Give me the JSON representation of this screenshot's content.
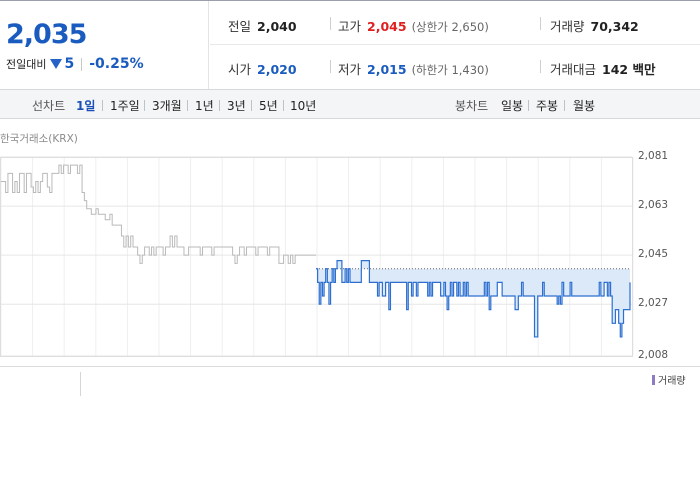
{
  "price": {
    "current": "2,035",
    "change_label": "전일대비",
    "change_value": "5",
    "change_rate": "-0.25%"
  },
  "stats": {
    "prev_close_label": "전일",
    "prev_close": "2,040",
    "high_label": "고가",
    "high": "2,045",
    "upper_limit": "(상한가 2,650)",
    "volume_label": "거래량",
    "volume": "70,342",
    "open_label": "시가",
    "open": "2,020",
    "low_label": "저가",
    "low": "2,015",
    "lower_limit": "(하한가 1,430)",
    "trade_value_label": "거래대금",
    "trade_value": "142 백만"
  },
  "period_bar": {
    "line_label": "선차트",
    "line_periods": [
      "1일",
      "1주일",
      "3개월",
      "1년",
      "3년",
      "5년",
      "10년"
    ],
    "active_period": "1일",
    "candle_label": "봉차트",
    "candle_periods": [
      "일봉",
      "주봉",
      "월봉"
    ]
  },
  "chart": {
    "source": "한국거래소(KRX)",
    "volume_legend": "거래량"
  },
  "colors": {
    "accent_blue": "#1a5bbf",
    "up_red": "#e02020",
    "prev_day_line": "#b9b9b9",
    "today_line": "#2c6fd1",
    "today_fill": "#dce9f9",
    "volume_marker": "#8e7cc3"
  },
  "chart_data": {
    "type": "line",
    "y_ticks": [
      2081,
      2063,
      2045,
      2027,
      2008
    ],
    "ylim": [
      2008,
      2081
    ],
    "grid": true,
    "reference_price": 2040,
    "series": [
      {
        "values": [
          2072,
          2072,
          2068,
          2075,
          2075,
          2068,
          2072,
          2068,
          2075,
          2075,
          2068,
          2075,
          2075,
          2070,
          2068,
          2072,
          2068,
          2072,
          2075,
          2075,
          2070,
          2068,
          2075,
          2075,
          2075,
          2078,
          2075,
          2078,
          2078,
          2075,
          2078,
          2078,
          2078,
          2075,
          2078,
          2068,
          2065,
          2062,
          2062,
          2060,
          2060,
          2062,
          2060,
          2060,
          2060,
          2058,
          2058,
          2060,
          2056,
          2056,
          2056,
          2056,
          2052,
          2048,
          2052,
          2048,
          2052,
          2048,
          2048,
          2045,
          2042,
          2045,
          2048,
          2048,
          2045,
          2048,
          2045,
          2048,
          2048,
          2048,
          2045,
          2048,
          2048,
          2052,
          2048,
          2052,
          2048,
          2048,
          2048,
          2045,
          2045,
          2048,
          2048,
          2048,
          2048,
          2048,
          2045,
          2048,
          2048,
          2048,
          2048,
          2045,
          2048,
          2048,
          2048,
          2048,
          2048,
          2048,
          2048,
          2048,
          2045,
          2042,
          2045,
          2048,
          2048,
          2045,
          2048,
          2048,
          2048,
          2048,
          2045,
          2048,
          2048,
          2048,
          2048,
          2045,
          2048,
          2048,
          2048,
          2048,
          2042,
          2042,
          2045,
          2045,
          2042,
          2045,
          2042,
          2045,
          2045,
          2045,
          2045,
          2045,
          2045,
          2045,
          2045,
          2045,
          2045
        ]
      },
      {
        "values": [
          2040,
          2035,
          2027,
          2035,
          2030,
          2035,
          2040,
          2035,
          2027,
          2035,
          2040,
          2035,
          2040,
          2043,
          2043,
          2043,
          2035,
          2035,
          2040,
          2035,
          2040,
          2035,
          2035,
          2035,
          2035,
          2035,
          2035,
          2035,
          2043,
          2043,
          2043,
          2043,
          2043,
          2035,
          2035,
          2035,
          2035,
          2035,
          2030,
          2035,
          2035,
          2030,
          2030,
          2035,
          2035,
          2025,
          2035,
          2035,
          2035,
          2035,
          2035,
          2035,
          2035,
          2035,
          2035,
          2035,
          2025,
          2035,
          2035,
          2030,
          2035,
          2035,
          2030,
          2035,
          2035,
          2035,
          2035,
          2035,
          2035,
          2030,
          2035,
          2030,
          2035,
          2035,
          2035,
          2035,
          2035,
          2030,
          2030,
          2035,
          2030,
          2025,
          2030,
          2035,
          2030,
          2035,
          2035,
          2030,
          2035,
          2030,
          2030,
          2035,
          2030,
          2035,
          2030,
          2030,
          2030,
          2030,
          2030,
          2030,
          2030,
          2030,
          2030,
          2030,
          2035,
          2030,
          2035,
          2025,
          2030,
          2030,
          2030,
          2030,
          2035,
          2035,
          2035,
          2030,
          2030,
          2030,
          2030,
          2030,
          2030,
          2030,
          2030,
          2025,
          2025,
          2030,
          2030,
          2035,
          2030,
          2030,
          2030,
          2030,
          2030,
          2030,
          2030,
          2015,
          2015,
          2030,
          2030,
          2030,
          2035,
          2030,
          2030,
          2030,
          2030,
          2030,
          2030,
          2030,
          2030,
          2027,
          2030,
          2027,
          2035,
          2030,
          2030,
          2030,
          2030,
          2035,
          2030,
          2030,
          2030,
          2030,
          2030,
          2030,
          2030,
          2030,
          2030,
          2030,
          2030,
          2030,
          2030,
          2030,
          2030,
          2030,
          2030,
          2035,
          2030,
          2030,
          2035,
          2035,
          2030,
          2035,
          2030,
          2020,
          2020,
          2025,
          2025,
          2020,
          2015,
          2020,
          2025,
          2025,
          2025,
          2025,
          2035
        ]
      }
    ]
  }
}
